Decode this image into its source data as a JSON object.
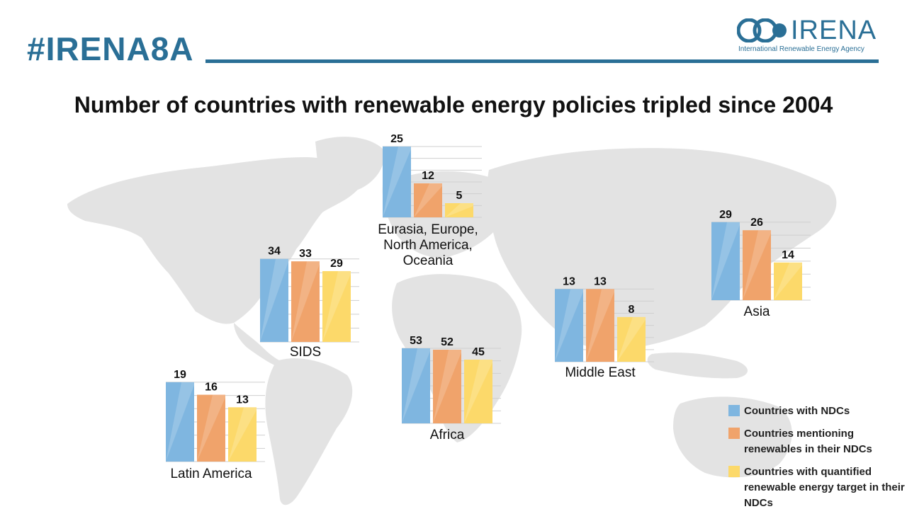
{
  "header": {
    "hashtag": "#IRENA8A",
    "logo_word": "IRENA",
    "logo_subtitle": "International Renewable Energy Agency"
  },
  "colors": {
    "brand": "#2a6f96",
    "blue": "#7fb6e0",
    "orange": "#f0a36b",
    "yellow": "#fcd96a",
    "map": "#e3e3e3"
  },
  "chart_data": {
    "type": "bar",
    "title": "Number of countries with renewable energy policies tripled since 2004",
    "series": [
      {
        "name": "Countries with NDCs",
        "color": "#7fb6e0"
      },
      {
        "name": "Countries mentioning renewables in their NDCs",
        "color": "#f0a36b"
      },
      {
        "name": "Countries with quantified renewable energy target in their NDCs",
        "color": "#fcd96a"
      }
    ],
    "groups": [
      {
        "label": "Eurasia, Europe, North America, Oceania",
        "values": [
          25,
          12,
          5
        ]
      },
      {
        "label": "SIDS",
        "values": [
          34,
          33,
          29
        ]
      },
      {
        "label": "Africa",
        "values": [
          53,
          52,
          45
        ]
      },
      {
        "label": "Middle  East",
        "values": [
          13,
          13,
          8
        ]
      },
      {
        "label": "Asia",
        "values": [
          29,
          26,
          14
        ]
      },
      {
        "label": "Latin America",
        "values": [
          19,
          16,
          13
        ]
      }
    ],
    "legend_position": "bottom-right",
    "grid": true
  }
}
